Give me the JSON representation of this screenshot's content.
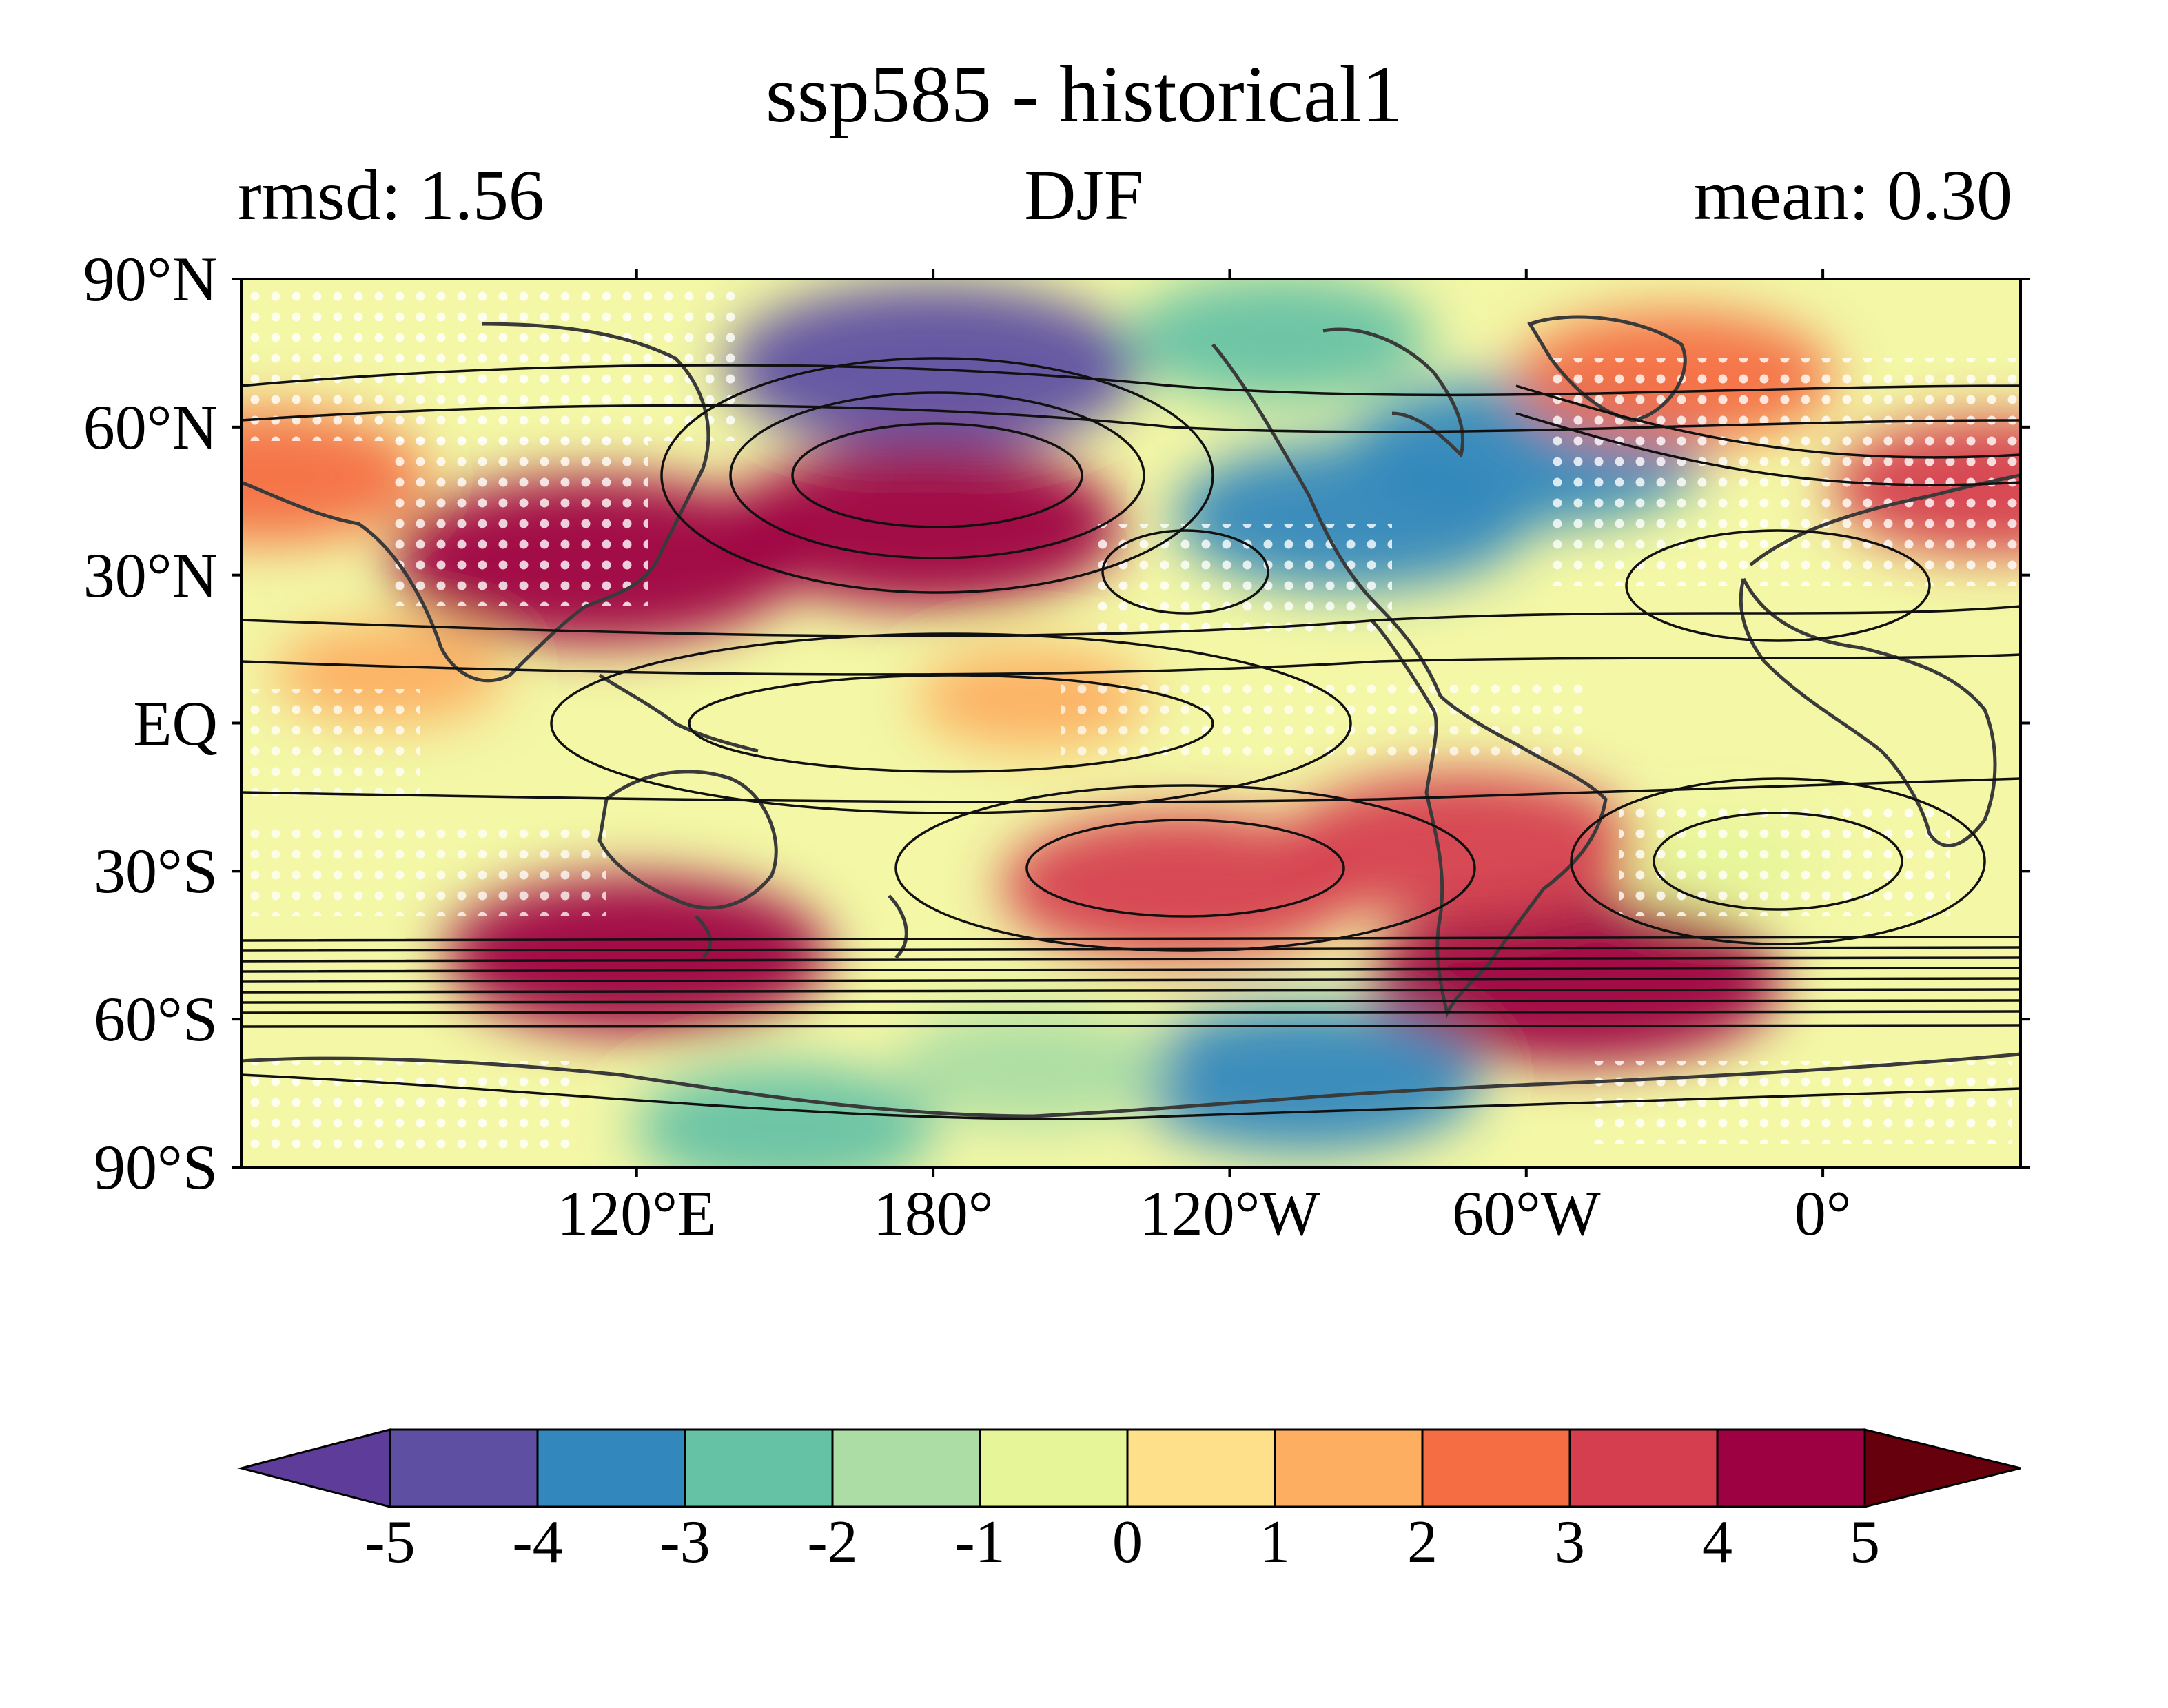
{
  "figure": {
    "title": "ssp585 - historical1",
    "left_stat": "rmsd: 1.56",
    "season": "DJF",
    "right_stat": "mean: 0.30"
  },
  "map": {
    "lat_ticks": [
      {
        "value": 90,
        "label": "90°N"
      },
      {
        "value": 60,
        "label": "60°N"
      },
      {
        "value": 30,
        "label": "30°N"
      },
      {
        "value": 0,
        "label": "EQ"
      },
      {
        "value": -30,
        "label": "30°S"
      },
      {
        "value": -60,
        "label": "60°S"
      },
      {
        "value": -90,
        "label": "90°S"
      }
    ],
    "lon_ticks": [
      {
        "value": 120,
        "label": "120°E"
      },
      {
        "value": 180,
        "label": "180°"
      },
      {
        "value": 240,
        "label": "120°W"
      },
      {
        "value": 300,
        "label": "60°W"
      },
      {
        "value": 360,
        "label": "0°"
      }
    ],
    "lon_range": [
      40,
      400
    ],
    "lat_range": [
      -90,
      90
    ],
    "anomaly_fields": [
      {
        "lon": 180,
        "lat": 72,
        "value": -4.5
      },
      {
        "lon": 250,
        "lat": 78,
        "value": -2.5
      },
      {
        "lon": 300,
        "lat": 55,
        "value": -3.5
      },
      {
        "lon": 265,
        "lat": 42,
        "value": -3.5
      },
      {
        "lon": 178,
        "lat": 40,
        "value": 4.2
      },
      {
        "lon": 112,
        "lat": 33,
        "value": 4.5
      },
      {
        "lon": 45,
        "lat": 50,
        "value": 2.8
      },
      {
        "lon": 330,
        "lat": 70,
        "value": 2.8
      },
      {
        "lon": 395,
        "lat": 48,
        "value": 3.0
      },
      {
        "lon": 120,
        "lat": -47,
        "value": 4.0
      },
      {
        "lon": 230,
        "lat": -33,
        "value": 3.5
      },
      {
        "lon": 310,
        "lat": -52,
        "value": 4.5
      },
      {
        "lon": 287,
        "lat": -25,
        "value": 3.5
      },
      {
        "lon": 255,
        "lat": -72,
        "value": -3.5
      },
      {
        "lon": 150,
        "lat": -82,
        "value": -2.5
      },
      {
        "lon": 200,
        "lat": -70,
        "value": -2.0
      },
      {
        "lon": 70,
        "lat": 10,
        "value": 1.2
      },
      {
        "lon": 200,
        "lat": 5,
        "value": 1.2
      },
      {
        "lon": 340,
        "lat": -28,
        "value": -0.5
      }
    ],
    "colors": {
      "land_outline": "#3a3a3a",
      "contour": "#111111",
      "stipple": "#ffffff"
    }
  },
  "colorbar": {
    "ticks": [
      "-5",
      "-4",
      "-3",
      "-2",
      "-1",
      "0",
      "1",
      "2",
      "3",
      "4",
      "5"
    ],
    "colors": [
      "#5e3c99",
      "#5e4fa2",
      "#3288bd",
      "#66c2a5",
      "#abdda4",
      "#e6f598",
      "#fee08b",
      "#fdae61",
      "#f46d43",
      "#d53e4f",
      "#9e0142",
      "#67000d"
    ]
  }
}
